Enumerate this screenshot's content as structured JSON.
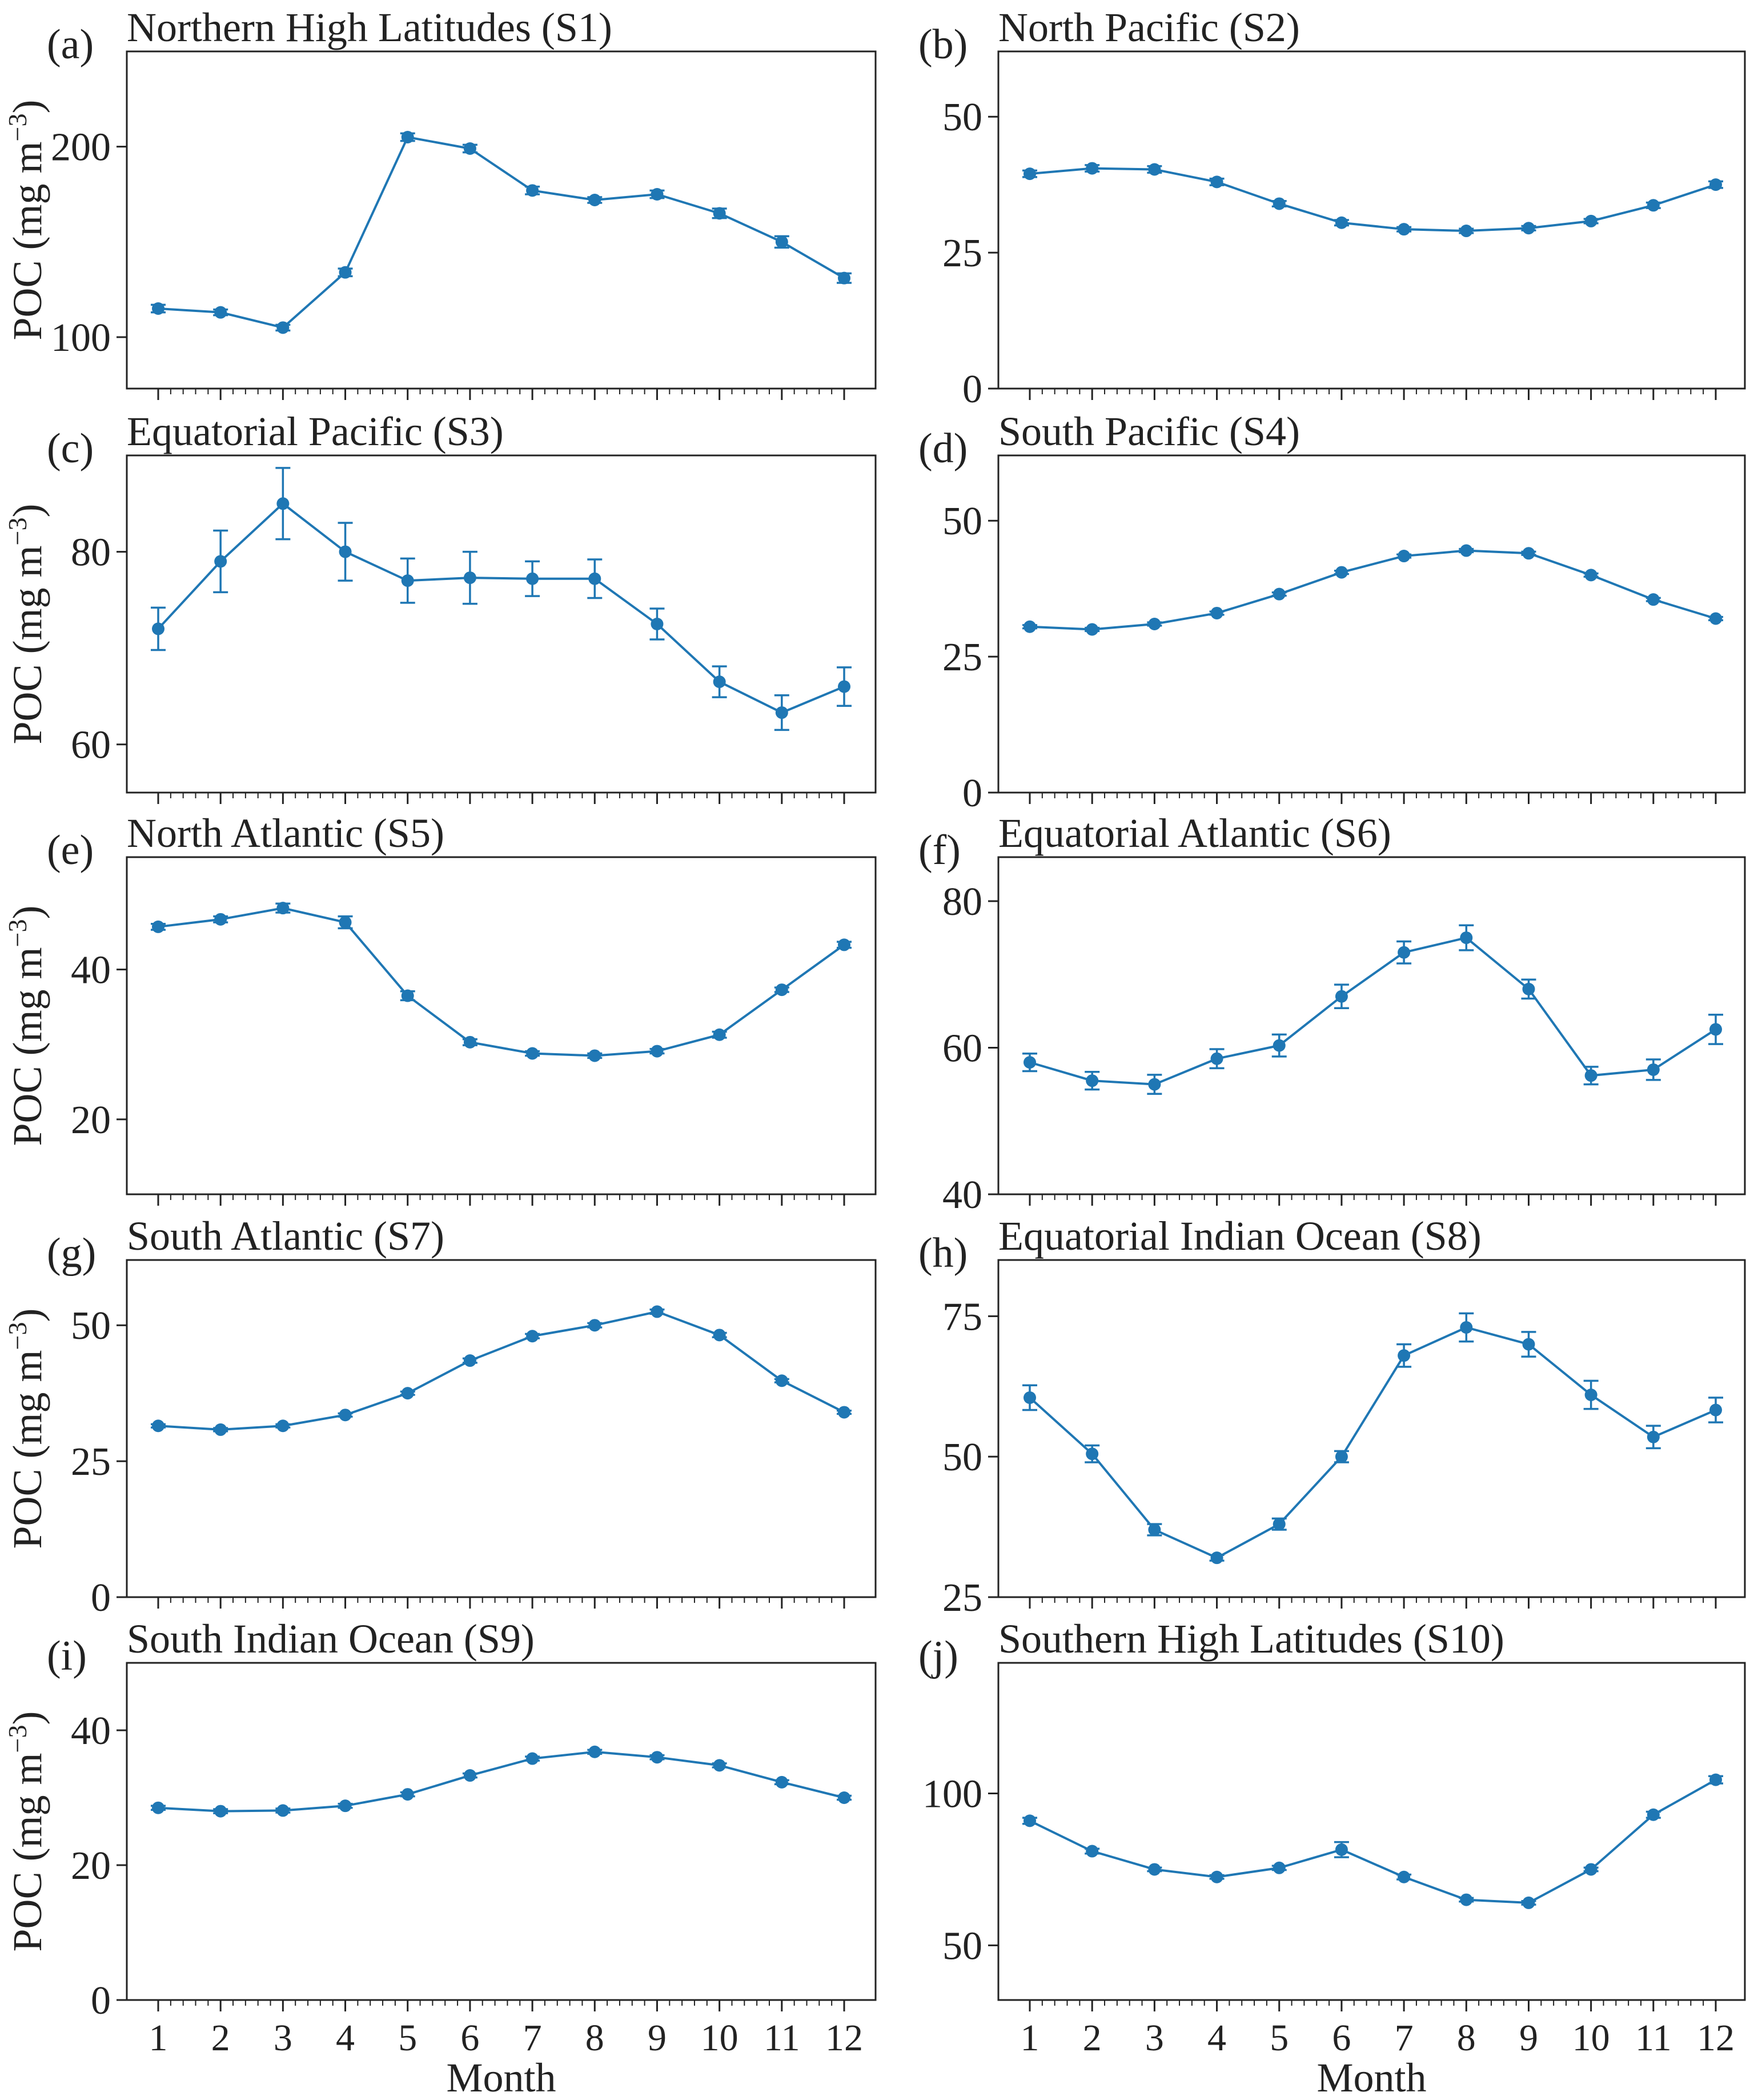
{
  "figure": {
    "series_color": "#1f77b4",
    "x_ticks": [
      "1",
      "2",
      "3",
      "4",
      "5",
      "6",
      "7",
      "8",
      "9",
      "10",
      "11",
      "12"
    ],
    "xlabel": "Month",
    "ylabel_main": "POC (mg m",
    "ylabel_sup": "−3",
    "ylabel_close": ")"
  },
  "chart_data": [
    {
      "type": "line",
      "panel": "(a)",
      "title": "Northern High Latitudes (S1)",
      "x": [
        1,
        2,
        3,
        4,
        5,
        6,
        7,
        8,
        9,
        10,
        11,
        12
      ],
      "values": [
        115,
        113,
        105,
        134,
        205,
        199,
        177,
        172,
        175,
        165,
        150,
        131
      ],
      "errors": [
        2,
        1.5,
        1.5,
        2,
        2,
        2,
        2,
        1.5,
        2,
        2.5,
        3,
        2.5
      ],
      "ylim": [
        73,
        250
      ],
      "yticks": [
        100,
        200
      ],
      "ytick_labels": [
        "100",
        "200"
      ]
    },
    {
      "type": "line",
      "panel": "(b)",
      "title": "North Pacific (S2)",
      "x": [
        1,
        2,
        3,
        4,
        5,
        6,
        7,
        8,
        9,
        10,
        11,
        12
      ],
      "values": [
        39.5,
        40.5,
        40.3,
        38,
        34,
        30.5,
        29.3,
        29,
        29.5,
        30.8,
        33.7,
        37.5
      ],
      "errors": [
        0.6,
        0.6,
        0.6,
        0.6,
        0.5,
        0.5,
        0.4,
        0.4,
        0.4,
        0.4,
        0.5,
        0.6
      ],
      "ylim": [
        0,
        62
      ],
      "yticks": [
        0,
        25,
        50
      ],
      "ytick_labels": [
        "0",
        "25",
        "50"
      ]
    },
    {
      "type": "line",
      "panel": "(c)",
      "title": "Equatorial Pacific (S3)",
      "x": [
        1,
        2,
        3,
        4,
        5,
        6,
        7,
        8,
        9,
        10,
        11,
        12
      ],
      "values": [
        72,
        79,
        85,
        80,
        77,
        77.3,
        77.2,
        77.2,
        72.5,
        66.5,
        63.3,
        66
      ],
      "errors": [
        2.2,
        3.2,
        3.7,
        3,
        2.3,
        2.7,
        1.8,
        2,
        1.6,
        1.6,
        1.8,
        2
      ],
      "ylim": [
        55,
        90
      ],
      "yticks": [
        60,
        80
      ],
      "ytick_labels": [
        "60",
        "80"
      ]
    },
    {
      "type": "line",
      "panel": "(d)",
      "title": "South Pacific (S4)",
      "x": [
        1,
        2,
        3,
        4,
        5,
        6,
        7,
        8,
        9,
        10,
        11,
        12
      ],
      "values": [
        30.5,
        30,
        31,
        33,
        36.5,
        40.5,
        43.5,
        44.5,
        44,
        40,
        35.5,
        32
      ],
      "errors": [
        0.3,
        0.3,
        0.3,
        0.3,
        0.3,
        0.3,
        0.3,
        0.3,
        0.3,
        0.3,
        0.3,
        0.3
      ],
      "ylim": [
        0,
        62
      ],
      "yticks": [
        0,
        25,
        50
      ],
      "ytick_labels": [
        "0",
        "25",
        "50"
      ]
    },
    {
      "type": "line",
      "panel": "(e)",
      "title": "North Atlantic (S5)",
      "x": [
        1,
        2,
        3,
        4,
        5,
        6,
        7,
        8,
        9,
        10,
        11,
        12
      ],
      "values": [
        45.7,
        46.7,
        48.2,
        46.3,
        36.5,
        30.3,
        28.8,
        28.5,
        29.1,
        31.3,
        37.3,
        43.3
      ],
      "errors": [
        0.4,
        0.4,
        0.6,
        0.8,
        0.6,
        0.4,
        0.3,
        0.3,
        0.3,
        0.4,
        0.3,
        0.4
      ],
      "ylim": [
        10,
        55
      ],
      "yticks": [
        20,
        40
      ],
      "ytick_labels": [
        "20",
        "40"
      ]
    },
    {
      "type": "line",
      "panel": "(f)",
      "title": "Equatorial Atlantic (S6)",
      "x": [
        1,
        2,
        3,
        4,
        5,
        6,
        7,
        8,
        9,
        10,
        11,
        12
      ],
      "values": [
        58,
        55.5,
        55,
        58.5,
        60.3,
        67,
        73,
        75,
        68,
        56.2,
        57,
        62.5
      ],
      "errors": [
        1.2,
        1.2,
        1.3,
        1.3,
        1.5,
        1.6,
        1.5,
        1.7,
        1.3,
        1.2,
        1.4,
        2
      ],
      "ylim": [
        40,
        86
      ],
      "yticks": [
        40,
        60,
        80
      ],
      "ytick_labels": [
        "40",
        "60",
        "80"
      ]
    },
    {
      "type": "line",
      "panel": "(g)",
      "title": "South Atlantic (S7)",
      "x": [
        1,
        2,
        3,
        4,
        5,
        6,
        7,
        8,
        9,
        10,
        11,
        12
      ],
      "values": [
        31.5,
        30.8,
        31.5,
        33.5,
        37.5,
        43.5,
        48,
        50,
        52.5,
        48.2,
        39.8,
        34
      ],
      "errors": [
        0.3,
        0.3,
        0.3,
        0.3,
        0.3,
        0.4,
        0.4,
        0.4,
        0.4,
        0.4,
        0.3,
        0.3
      ],
      "ylim": [
        0,
        62
      ],
      "yticks": [
        0,
        25,
        50
      ],
      "ytick_labels": [
        "0",
        "25",
        "50"
      ]
    },
    {
      "type": "line",
      "panel": "(h)",
      "title": "Equatorial Indian Ocean (S8)",
      "x": [
        1,
        2,
        3,
        4,
        5,
        6,
        7,
        8,
        9,
        10,
        11,
        12
      ],
      "values": [
        60.5,
        50.5,
        37,
        32,
        38,
        50,
        68,
        73,
        70,
        61,
        53.5,
        58.3
      ],
      "errors": [
        2.2,
        1.5,
        1,
        0.5,
        1,
        1,
        2,
        2.5,
        2.2,
        2.5,
        2,
        2.2
      ],
      "ylim": [
        25,
        85
      ],
      "yticks": [
        25,
        50,
        75
      ],
      "ytick_labels": [
        "25",
        "50",
        "75"
      ]
    },
    {
      "type": "line",
      "panel": "(i)",
      "title": "South Indian Ocean (S9)",
      "x": [
        1,
        2,
        3,
        4,
        5,
        6,
        7,
        8,
        9,
        10,
        11,
        12
      ],
      "values": [
        28.5,
        28,
        28.1,
        28.8,
        30.5,
        33.3,
        35.8,
        36.8,
        36,
        34.8,
        32.3,
        30
      ],
      "errors": [
        0.3,
        0.3,
        0.3,
        0.3,
        0.3,
        0.3,
        0.3,
        0.3,
        0.3,
        0.3,
        0.3,
        0.3
      ],
      "ylim": [
        0,
        50
      ],
      "yticks": [
        0,
        20,
        40
      ],
      "ytick_labels": [
        "0",
        "20",
        "40"
      ]
    },
    {
      "type": "line",
      "panel": "(j)",
      "title": "Southern High Latitudes (S10)",
      "x": [
        1,
        2,
        3,
        4,
        5,
        6,
        7,
        8,
        9,
        10,
        11,
        12
      ],
      "values": [
        91,
        81,
        75,
        72.5,
        75.5,
        81.5,
        72.5,
        65,
        64,
        75,
        93,
        104.5
      ],
      "errors": [
        1,
        0.8,
        0.6,
        0.6,
        0.7,
        2.5,
        0.8,
        0.6,
        0.6,
        0.6,
        1,
        1.2
      ],
      "ylim": [
        32,
        143
      ],
      "yticks": [
        50,
        100
      ],
      "ytick_labels": [
        "50",
        "100"
      ]
    }
  ]
}
